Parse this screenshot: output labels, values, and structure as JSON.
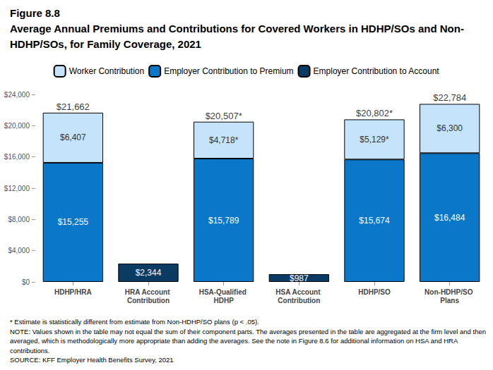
{
  "chart_data": {
    "type": "bar",
    "figure_label": "Figure 8.8",
    "title": "Average Annual Premiums and Contributions for Covered Workers in HDHP/SOs and Non-HDHP/SOs, for Family Coverage, 2021",
    "notes": [
      "* Estimate is statistically different from estimate from Non-HDHP/SO plans (p < .05).",
      "NOTE: Values shown in the table may not equal the sum of their component parts. The averages presented in the table are aggregated at the firm level and then averaged, which is methodologically more appropriate than adding the averages. See the note in Figure 8.6 for additional information on HSA and HRA contributions.",
      "SOURCE: KFF Employer Health Benefits Survey, 2021"
    ],
    "categories": [
      "HDHP/HRA",
      "HRA Account Contribution",
      "HSA-Qualified HDHP",
      "HSA Account Contribution",
      "HDHP/SO",
      "Non-HDHP/SO Plans"
    ],
    "series": [
      {
        "name": "Employer Contribution to Premium",
        "color": "#0a77c9",
        "values": [
          15255,
          null,
          15789,
          null,
          15674,
          16484
        ],
        "value_labels": [
          "$15,255",
          null,
          "$15,789",
          null,
          "$15,674",
          "$16,484"
        ]
      },
      {
        "name": "Worker Contribution",
        "color": "#c5e4fb",
        "values": [
          6407,
          null,
          4718,
          null,
          5129,
          6300
        ],
        "value_labels": [
          "$6,407",
          null,
          "$4,718*",
          null,
          "$5,129*",
          "$6,300"
        ]
      },
      {
        "name": "Employer Contribution to Account",
        "color": "#0b3a63",
        "values": [
          null,
          2344,
          null,
          987,
          null,
          null
        ],
        "value_labels": [
          null,
          "$2,344",
          null,
          "$987",
          null,
          null
        ]
      }
    ],
    "totals": {
      "values": [
        21662,
        null,
        20507,
        null,
        20802,
        22784
      ],
      "value_labels": [
        "$21,662",
        null,
        "$20,507*",
        null,
        "$20,802*",
        "$22,784"
      ]
    },
    "legend_order": [
      "Worker Contribution",
      "Employer Contribution to Premium",
      "Employer Contribution to Account"
    ],
    "legend": "top",
    "stacked": true,
    "data_labels": true,
    "grid": false,
    "ylim": [
      0,
      24000
    ],
    "yticks": [
      {
        "value": 0,
        "label": "$0"
      },
      {
        "value": 4000,
        "label": "$4,000"
      },
      {
        "value": 8000,
        "label": "$8,000"
      },
      {
        "value": 12000,
        "label": "$12,000"
      },
      {
        "value": 16000,
        "label": "$16,000"
      },
      {
        "value": 20000,
        "label": "$20,000"
      },
      {
        "value": 24000,
        "label": "$24,000"
      }
    ]
  }
}
